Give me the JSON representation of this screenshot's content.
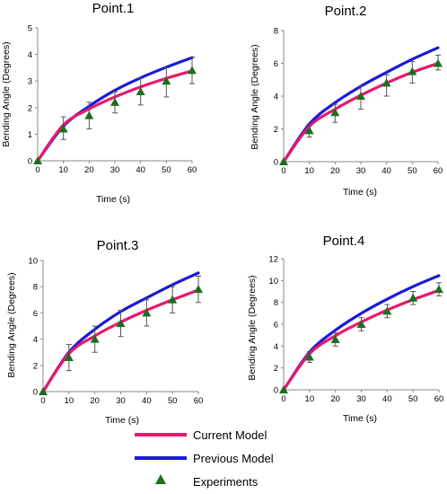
{
  "colors": {
    "current_model": "#e8196e",
    "previous_model": "#1a1ad6",
    "experiments": "#1e6e1e",
    "error_bar": "#555555",
    "axis": "#888888"
  },
  "legend": {
    "current_model": "Current Model",
    "previous_model": "Previous Model",
    "experiments": "Experiments",
    "marker_icon": "triangle-marker-icon"
  },
  "chart_data": [
    {
      "type": "line",
      "title": "Point.1",
      "xlabel": "Time (s)",
      "ylabel": "Bending Angle (Degrees)",
      "xlim": [
        0,
        60
      ],
      "ylim": [
        0,
        5
      ],
      "xticks": [
        "0",
        "10",
        "20",
        "30",
        "40",
        "50",
        "60"
      ],
      "yticks": [
        "0",
        "1",
        "2",
        "3",
        "4",
        "5"
      ],
      "x": [
        0,
        10,
        20,
        30,
        40,
        50,
        60
      ],
      "series": [
        {
          "name": "Current Model",
          "kind": "line",
          "values": [
            0,
            1.35,
            1.95,
            2.4,
            2.78,
            3.1,
            3.38
          ]
        },
        {
          "name": "Previous Model",
          "kind": "line",
          "values": [
            0,
            1.3,
            2.05,
            2.65,
            3.12,
            3.52,
            3.88
          ]
        },
        {
          "name": "Experiments",
          "kind": "scatter",
          "values": [
            0,
            1.2,
            1.7,
            2.2,
            2.6,
            3.0,
            3.4
          ],
          "err_low": [
            0,
            0.4,
            0.5,
            0.4,
            0.5,
            0.6,
            0.5
          ],
          "err_high": [
            0,
            0.45,
            0.5,
            0.4,
            0.5,
            0.5,
            0.5
          ]
        }
      ]
    },
    {
      "type": "line",
      "title": "Point.2",
      "xlabel": "Time (s)",
      "ylabel": "Bending Angle (Degrees)",
      "xlim": [
        0,
        60
      ],
      "ylim": [
        0,
        8
      ],
      "xticks": [
        "0",
        "10",
        "20",
        "30",
        "40",
        "50",
        "60"
      ],
      "yticks": [
        "0",
        "2",
        "4",
        "6",
        "8"
      ],
      "x": [
        0,
        10,
        20,
        30,
        40,
        50,
        60
      ],
      "series": [
        {
          "name": "Current Model",
          "kind": "line",
          "values": [
            0,
            2.15,
            3.2,
            4.05,
            4.8,
            5.45,
            6.0
          ]
        },
        {
          "name": "Previous Model",
          "kind": "line",
          "values": [
            0,
            2.3,
            3.6,
            4.6,
            5.45,
            6.25,
            6.95
          ]
        },
        {
          "name": "Experiments",
          "kind": "scatter",
          "values": [
            0,
            1.9,
            3.0,
            4.0,
            4.8,
            5.5,
            6.0
          ],
          "err_low": [
            0,
            0.4,
            0.6,
            0.8,
            0.8,
            0.7,
            0.4
          ],
          "err_high": [
            0,
            0.4,
            0.5,
            0.6,
            0.5,
            0.6,
            0.5
          ]
        }
      ]
    },
    {
      "type": "line",
      "title": "Point.3",
      "xlabel": "Time (s)",
      "ylabel": "Bending Angle (Degrees)",
      "xlim": [
        0,
        60
      ],
      "ylim": [
        0,
        10
      ],
      "xticks": [
        "0",
        "10",
        "20",
        "30",
        "40",
        "50",
        "60"
      ],
      "yticks": [
        "0",
        "2",
        "4",
        "6",
        "8",
        "10"
      ],
      "x": [
        0,
        10,
        20,
        30,
        40,
        50,
        60
      ],
      "series": [
        {
          "name": "Current Model",
          "kind": "line",
          "values": [
            0,
            2.9,
            4.25,
            5.3,
            6.2,
            7.0,
            7.75
          ]
        },
        {
          "name": "Previous Model",
          "kind": "line",
          "values": [
            0,
            3.0,
            4.75,
            6.1,
            7.15,
            8.15,
            9.05
          ]
        },
        {
          "name": "Experiments",
          "kind": "scatter",
          "values": [
            0,
            2.6,
            4.0,
            5.2,
            6.0,
            7.0,
            7.8
          ],
          "err_low": [
            0,
            1.0,
            1.0,
            1.0,
            1.0,
            1.0,
            1.0
          ],
          "err_high": [
            0,
            1.0,
            1.0,
            1.0,
            1.0,
            1.0,
            1.0
          ]
        }
      ]
    },
    {
      "type": "line",
      "title": "Point.4",
      "xlabel": "Time (s)",
      "ylabel": "Bending Angle (Degrees)",
      "xlim": [
        0,
        60
      ],
      "ylim": [
        0,
        12
      ],
      "xticks": [
        "0",
        "10",
        "20",
        "30",
        "40",
        "50",
        "60"
      ],
      "yticks": [
        "0",
        "2",
        "4",
        "6",
        "8",
        "10",
        "12"
      ],
      "x": [
        0,
        10,
        20,
        30,
        40,
        50,
        60
      ],
      "series": [
        {
          "name": "Current Model",
          "kind": "line",
          "values": [
            0,
            3.3,
            4.95,
            6.2,
            7.3,
            8.25,
            9.1
          ]
        },
        {
          "name": "Previous Model",
          "kind": "line",
          "values": [
            0,
            3.45,
            5.45,
            7.0,
            8.3,
            9.45,
            10.45
          ]
        },
        {
          "name": "Experiments",
          "kind": "scatter",
          "values": [
            0,
            3.0,
            4.6,
            6.0,
            7.2,
            8.4,
            9.2
          ],
          "err_low": [
            0,
            0.5,
            0.6,
            0.6,
            0.6,
            0.6,
            0.6
          ],
          "err_high": [
            0,
            0.5,
            0.6,
            0.6,
            0.6,
            0.6,
            0.6
          ]
        }
      ]
    }
  ]
}
